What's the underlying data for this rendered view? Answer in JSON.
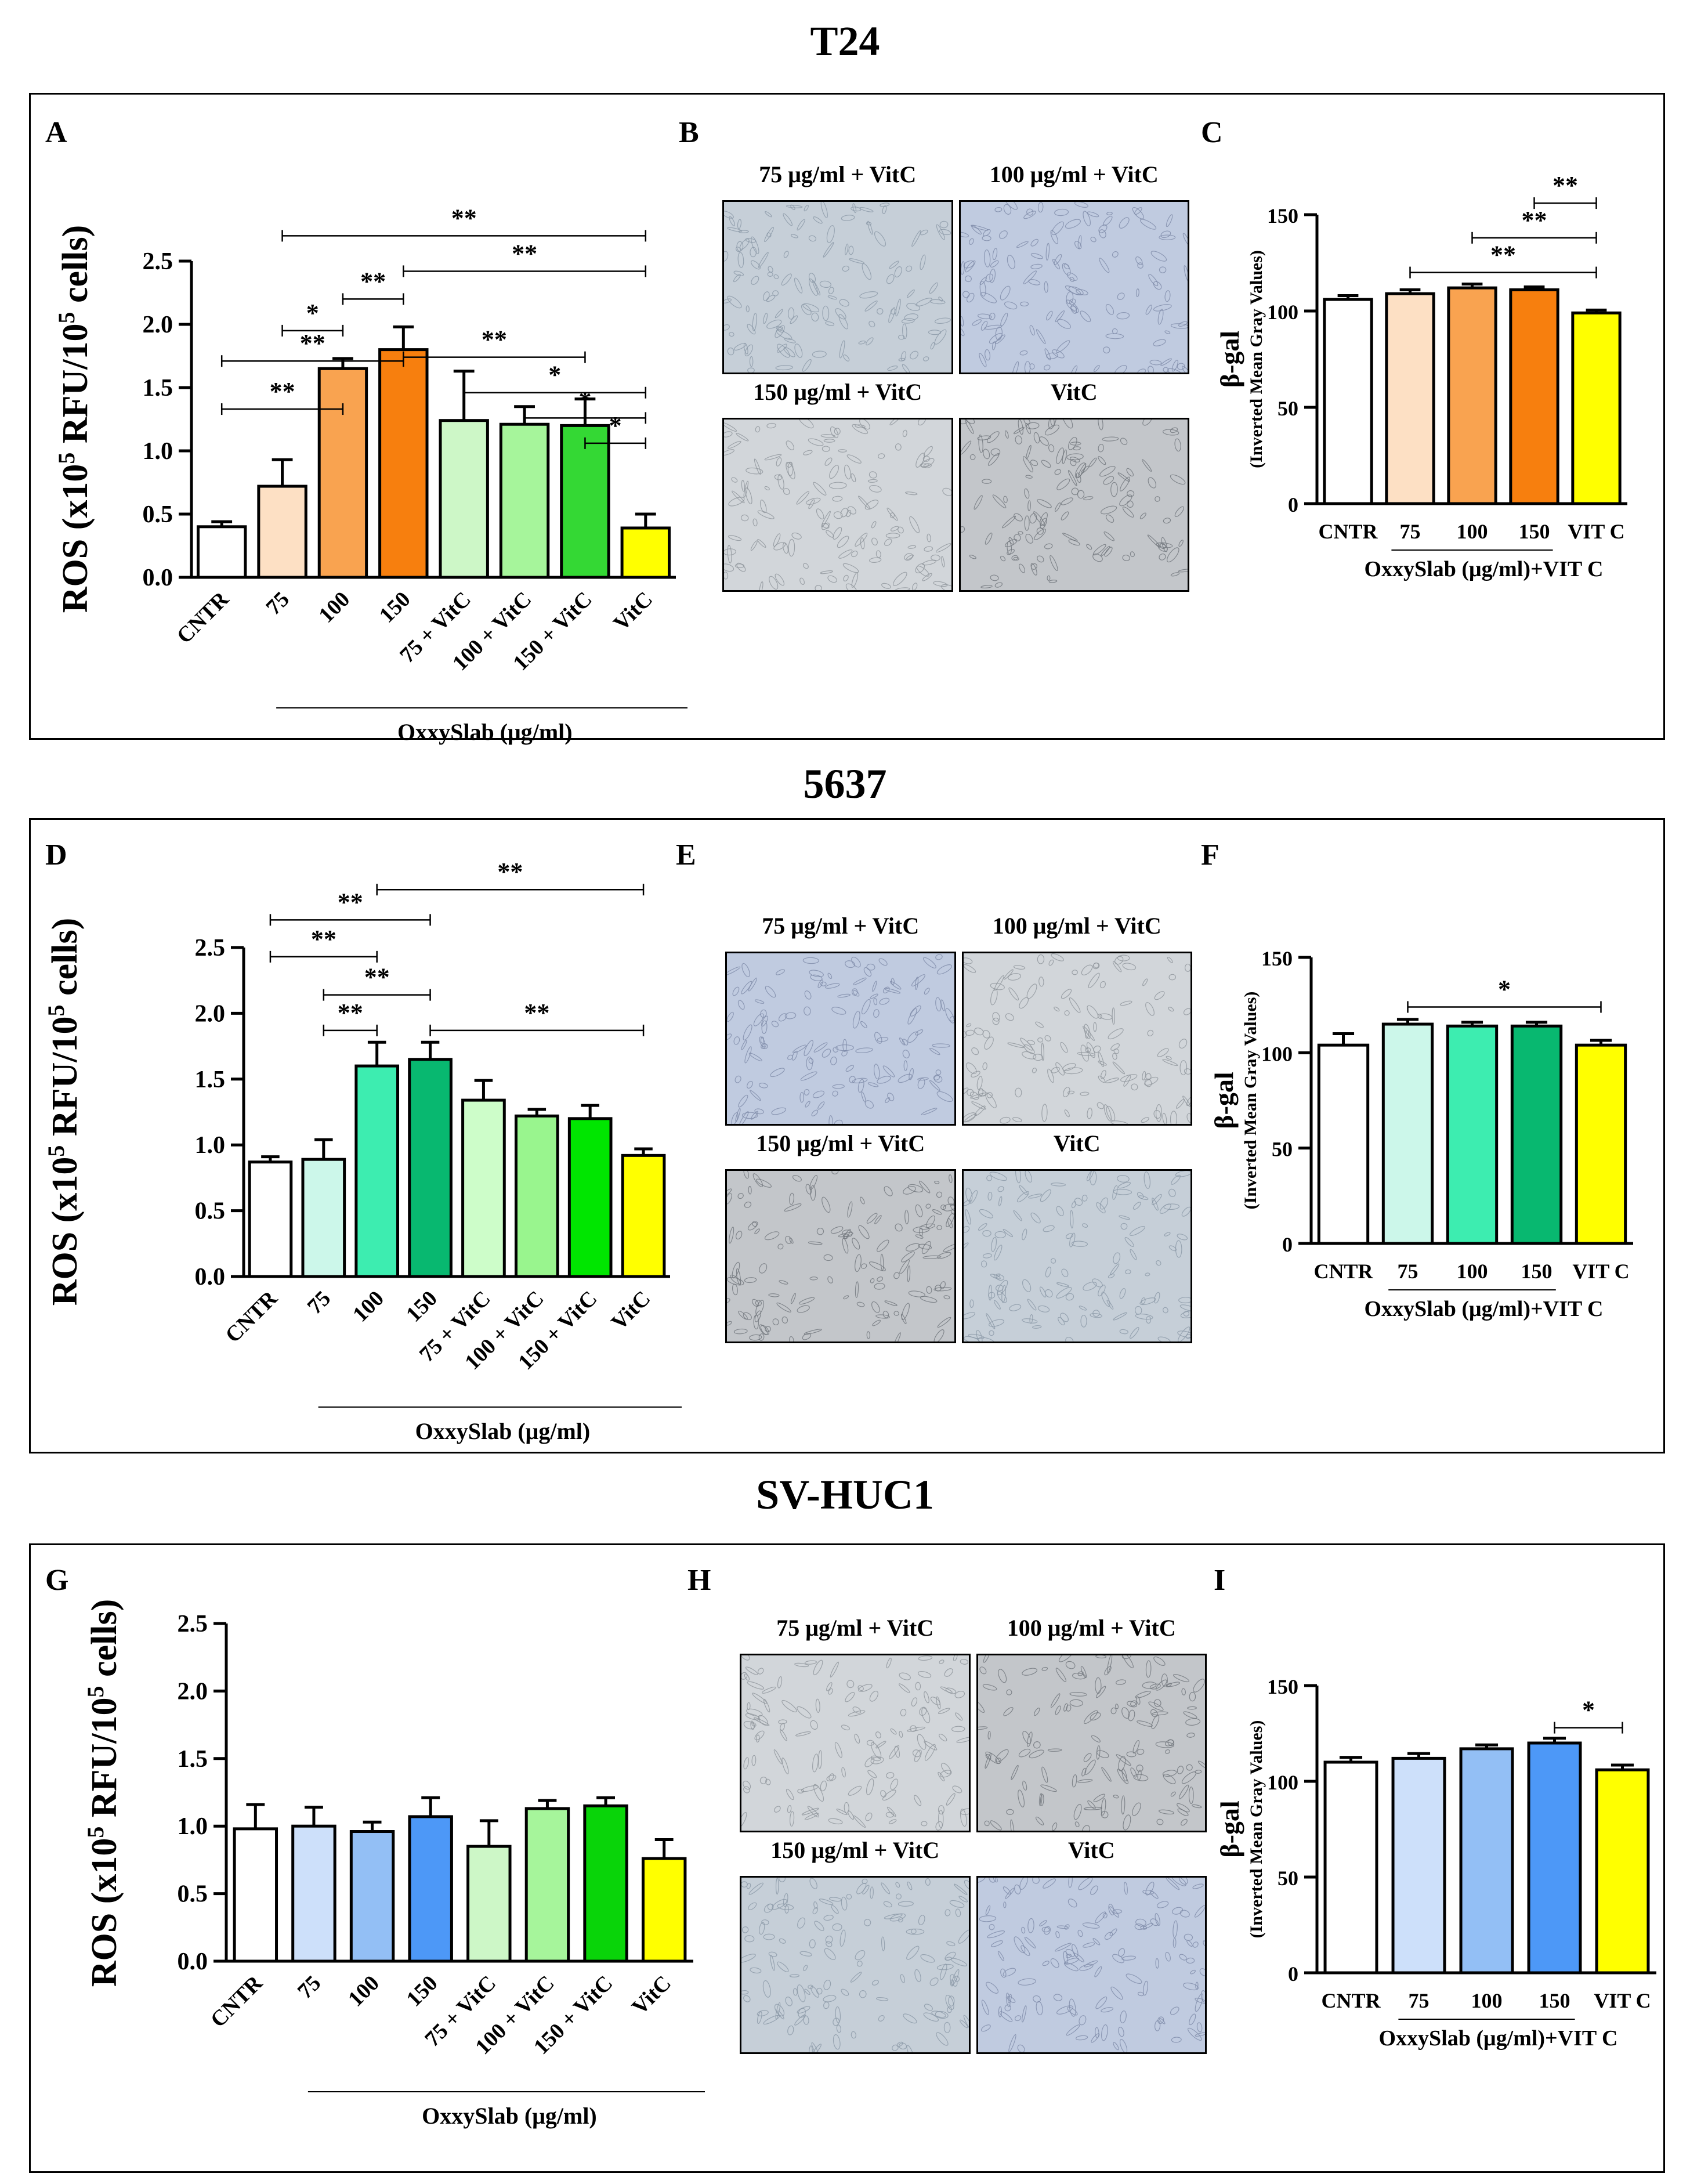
{
  "rows": [
    {
      "title": "T24",
      "panels": {
        "ros_letter": "A",
        "micro_letter": "B",
        "gal_letter": "C"
      },
      "micrographs": [
        "75 μg/ml + VitC",
        "100 μg/ml + VitC",
        "150 μg/ml + VitC",
        "VitC"
      ]
    },
    {
      "title": "5637",
      "panels": {
        "ros_letter": "D",
        "micro_letter": "E",
        "gal_letter": "F"
      },
      "micrographs": [
        "75 μg/ml + VitC",
        "100 μg/ml + VitC",
        "150 μg/ml + VitC",
        "VitC"
      ]
    },
    {
      "title": "SV-HUC1",
      "panels": {
        "ros_letter": "G",
        "micro_letter": "H",
        "gal_letter": "I"
      },
      "micrographs": [
        "75 μg/ml + VitC",
        "100 μg/ml + VitC",
        "150 μg/ml + VitC",
        "VitC"
      ]
    }
  ],
  "chart_data": [
    {
      "id": "A",
      "type": "bar",
      "ylabel": "ROS (x10^5 RFU/10^5 cells)",
      "ylabel_parts": [
        "ROS (x10",
        "5",
        " RFU/10",
        "5",
        " cells)"
      ],
      "xgroup_label": "OxxySlab (μg/ml)",
      "categories": [
        "CNTR",
        "75",
        "100",
        "150",
        "75 + VitC",
        "100 + VitC",
        "150 + VitC",
        "VitC"
      ],
      "values": [
        0.4,
        0.72,
        1.65,
        1.8,
        1.24,
        1.21,
        1.2,
        0.39
      ],
      "errors": [
        0.04,
        0.21,
        0.08,
        0.18,
        0.39,
        0.14,
        0.21,
        0.11
      ],
      "colors": [
        "#ffffff",
        "#fde0c4",
        "#f9a350",
        "#f77f0e",
        "#cdf7c7",
        "#a6f59b",
        "#34d834",
        "#ffff00"
      ],
      "ylim": [
        0,
        2.5
      ],
      "yticks": [
        "0.0",
        "0.5",
        "1.0",
        "1.5",
        "2.0",
        "2.5"
      ],
      "significance": [
        {
          "from": 1,
          "to": 7,
          "label": "**",
          "level": 2.7
        },
        {
          "from": 3,
          "to": 7,
          "label": "**",
          "level": 2.42
        },
        {
          "from": 2,
          "to": 3,
          "label": "**",
          "level": 2.2
        },
        {
          "from": 1,
          "to": 2,
          "label": "*",
          "level": 1.95
        },
        {
          "from": 0,
          "to": 3,
          "label": "**",
          "level": 1.71
        },
        {
          "from": 3,
          "to": 6,
          "label": "**",
          "level": 1.74
        },
        {
          "from": 4,
          "to": 7,
          "label": "*",
          "level": 1.46
        },
        {
          "from": 0,
          "to": 2,
          "label": "**",
          "level": 1.33
        },
        {
          "from": 5,
          "to": 7,
          "label": "*",
          "level": 1.26
        },
        {
          "from": 6,
          "to": 7,
          "label": "*",
          "level": 1.06
        }
      ]
    },
    {
      "id": "C",
      "type": "bar",
      "ylabel": "β-gal",
      "ylabel2": "(Inverted Mean Gray Values)",
      "xgroup_label": "OxxySlab (μg/ml)+VIT C",
      "categories": [
        "CNTR",
        "75",
        "100",
        "150",
        "VIT C"
      ],
      "values": [
        106,
        109,
        112,
        111,
        99
      ],
      "errors": [
        2,
        2,
        2,
        1.5,
        1.5
      ],
      "colors": [
        "#ffffff",
        "#fde0c4",
        "#f9a350",
        "#f77f0e",
        "#ffff00"
      ],
      "ylim": [
        0,
        150
      ],
      "yticks": [
        "0",
        "50",
        "100",
        "150"
      ],
      "significance": [
        {
          "from": 3,
          "to": 4,
          "label": "**",
          "level": 156
        },
        {
          "from": 2,
          "to": 4,
          "label": "**",
          "level": 138
        },
        {
          "from": 1,
          "to": 4,
          "label": "**",
          "level": 120
        }
      ]
    },
    {
      "id": "D",
      "type": "bar",
      "ylabel": "ROS (x10^5 RFU/10^5 cells)",
      "ylabel_parts": [
        "ROS (x10",
        "5",
        " RFU/10",
        "5",
        " cells)"
      ],
      "xgroup_label": "OxxySlab (μg/ml)",
      "categories": [
        "CNTR",
        "75",
        "100",
        "150",
        "75 + VitC",
        "100 + VitC",
        "150 + VitC",
        "VitC"
      ],
      "values": [
        0.87,
        0.89,
        1.6,
        1.65,
        1.34,
        1.22,
        1.2,
        0.92
      ],
      "errors": [
        0.04,
        0.15,
        0.18,
        0.13,
        0.15,
        0.05,
        0.1,
        0.05
      ],
      "colors": [
        "#ffffff",
        "#ccf7ea",
        "#3dedb0",
        "#08b870",
        "#cdfdc9",
        "#99f58e",
        "#00e600",
        "#ffff00"
      ],
      "ylim": [
        0,
        2.5
      ],
      "yticks": [
        "0.0",
        "0.5",
        "1.0",
        "1.5",
        "2.0",
        "2.5"
      ],
      "significance": [
        {
          "from": 2,
          "to": 7,
          "label": "**",
          "level": 2.94
        },
        {
          "from": 0,
          "to": 3,
          "label": "**",
          "level": 2.71
        },
        {
          "from": 0,
          "to": 2,
          "label": "**",
          "level": 2.43
        },
        {
          "from": 1,
          "to": 3,
          "label": "**",
          "level": 2.14
        },
        {
          "from": 1,
          "to": 2,
          "label": "**",
          "level": 1.87
        },
        {
          "from": 3,
          "to": 7,
          "label": "**",
          "level": 1.87
        }
      ]
    },
    {
      "id": "F",
      "type": "bar",
      "ylabel": "β-gal",
      "ylabel2": "(Inverted Mean Gray Values)",
      "xgroup_label": "OxxySlab (μg/ml)+VIT C",
      "categories": [
        "CNTR",
        "75",
        "100",
        "150",
        "VIT C"
      ],
      "values": [
        104,
        115,
        114,
        114,
        104
      ],
      "errors": [
        6,
        2.5,
        2,
        2,
        2.5
      ],
      "colors": [
        "#ffffff",
        "#ccf7ea",
        "#3dedb0",
        "#08b870",
        "#ffff00"
      ],
      "ylim": [
        0,
        150
      ],
      "yticks": [
        "0",
        "50",
        "100",
        "150"
      ],
      "significance": [
        {
          "from": 1,
          "to": 4,
          "label": "*",
          "level": 124
        }
      ]
    },
    {
      "id": "G",
      "type": "bar",
      "ylabel": "ROS (x10^5 RFU/10^5 cells)",
      "ylabel_parts": [
        "ROS (x10",
        "5",
        " RFU/10",
        "5",
        " cells)"
      ],
      "xgroup_label": "OxxySlab (μg/ml)",
      "categories": [
        "CNTR",
        "75",
        "100",
        "150",
        "75 + VitC",
        "100 + VitC",
        "150 + VitC",
        "VitC"
      ],
      "values": [
        0.98,
        1.0,
        0.96,
        1.07,
        0.85,
        1.13,
        1.15,
        0.76
      ],
      "errors": [
        0.18,
        0.14,
        0.07,
        0.14,
        0.19,
        0.06,
        0.06,
        0.14
      ],
      "colors": [
        "#ffffff",
        "#cde0fa",
        "#93bff5",
        "#4d98f7",
        "#cdf7c7",
        "#a6f59b",
        "#09d409",
        "#ffff00"
      ],
      "ylim": [
        0,
        2.5
      ],
      "yticks": [
        "0.0",
        "0.5",
        "1.0",
        "1.5",
        "2.0",
        "2.5"
      ],
      "significance": []
    },
    {
      "id": "I",
      "type": "bar",
      "ylabel": "β-gal",
      "ylabel2": "(Inverted Mean Gray Values)",
      "xgroup_label": "OxxySlab (μg/ml)+VIT C",
      "categories": [
        "CNTR",
        "75",
        "100",
        "150",
        "VIT C"
      ],
      "values": [
        110,
        112,
        117,
        120,
        106
      ],
      "errors": [
        2.5,
        2.5,
        2,
        2.5,
        2.5
      ],
      "colors": [
        "#ffffff",
        "#cde0fa",
        "#93bff5",
        "#4d98f7",
        "#ffff00"
      ],
      "ylim": [
        0,
        150
      ],
      "yticks": [
        "0",
        "50",
        "100",
        "150"
      ],
      "significance": [
        {
          "from": 3,
          "to": 4,
          "label": "*",
          "level": 128
        }
      ]
    }
  ]
}
